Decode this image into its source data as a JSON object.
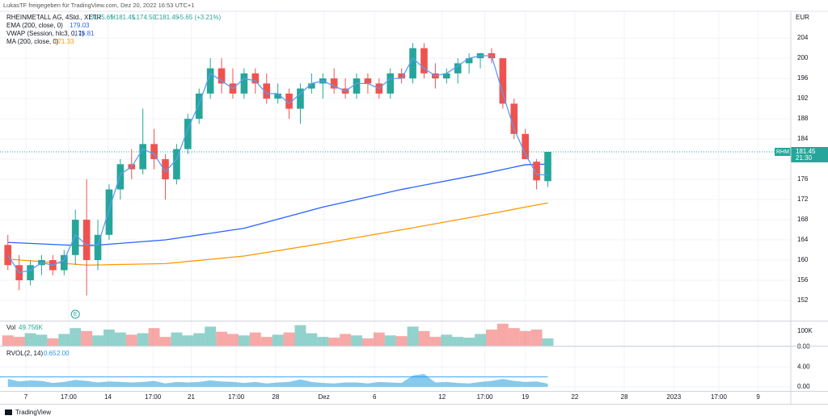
{
  "chart_data": {
    "type": "candlestick",
    "header": "LukasTF freigegeben für TradingView.com, Dez 20, 2022 16:53 UTC+1",
    "symbol": "RHEINMETALL AG, 4Std., XETR",
    "ohlc": [
      "O175.65",
      "H181.45",
      "L174.50",
      "C181.45",
      "+5.65 (+3.21%)"
    ],
    "currency": "EUR",
    "symbol_short": "RHM",
    "countdown": "21:30",
    "earnings_marker": "E",
    "brand": "TradingView",
    "xlim": [
      -0.7,
      69.6
    ],
    "xticks": [
      {
        "value": 1.6,
        "label": "7"
      },
      {
        "value": 5.4,
        "label": "17:00"
      },
      {
        "value": 8.9,
        "label": "14"
      },
      {
        "value": 12.9,
        "label": "17:00"
      },
      {
        "value": 16.3,
        "label": "21"
      },
      {
        "value": 20.3,
        "label": "17:00"
      },
      {
        "value": 23.8,
        "label": "28"
      },
      {
        "value": 28.1,
        "label": "Dez"
      },
      {
        "value": 32.6,
        "label": "6"
      },
      {
        "value": 38.6,
        "label": "12"
      },
      {
        "value": 42.4,
        "label": "17:00"
      },
      {
        "value": 46.0,
        "label": "19"
      },
      {
        "value": 50.4,
        "label": "22"
      },
      {
        "value": 54.8,
        "label": "28"
      },
      {
        "value": 59.2,
        "label": "2023"
      },
      {
        "value": 63.2,
        "label": "17:00"
      },
      {
        "value": 66.7,
        "label": "9"
      }
    ],
    "ylim": [
      148,
      209.3
    ],
    "yticks": [
      152,
      156,
      160,
      164,
      168,
      172,
      176,
      180,
      184,
      188,
      192,
      196,
      200,
      204
    ],
    "up_color": "#26a69a",
    "down_color": "#ef5350",
    "open": [
      163,
      159,
      156,
      159,
      160,
      158,
      161,
      168,
      160,
      165,
      174,
      179,
      178,
      183,
      180,
      176,
      182,
      188,
      193,
      198,
      195,
      193,
      197,
      195,
      192,
      193,
      190,
      194,
      195,
      196,
      194,
      193,
      196,
      195,
      193,
      197,
      196,
      202,
      197,
      196,
      197,
      199,
      200,
      201,
      200,
      191,
      185,
      179.5,
      175.65
    ],
    "high": [
      165,
      161,
      160,
      161,
      161,
      162,
      170,
      176,
      168,
      175,
      180,
      182,
      190,
      186,
      181,
      183,
      189,
      194,
      200,
      200,
      198,
      198,
      198,
      197,
      195,
      194,
      195,
      197,
      197,
      198,
      196,
      197,
      197,
      196,
      198,
      198,
      203,
      203,
      199,
      198,
      200,
      201,
      201,
      202,
      200,
      192,
      186,
      180,
      181.45
    ],
    "low": [
      158,
      154,
      155,
      157,
      157,
      157,
      159,
      153,
      158,
      164,
      172,
      176,
      177,
      178,
      172,
      175,
      181,
      187,
      192,
      193,
      192,
      192,
      193,
      191,
      191,
      188,
      187,
      193,
      192,
      193,
      192,
      192,
      193,
      192,
      192,
      195,
      195,
      196,
      194,
      195,
      195,
      197,
      198,
      199,
      190,
      184,
      180,
      174,
      174.5
    ],
    "close": [
      159,
      156,
      159,
      160,
      158,
      161,
      168,
      160,
      165,
      174,
      179,
      178,
      183,
      180,
      176,
      182,
      188,
      193,
      198,
      195,
      193,
      197,
      195,
      192,
      193,
      190,
      194,
      195,
      196,
      194,
      193,
      196,
      195,
      193,
      197,
      196,
      202,
      197,
      196,
      197,
      199,
      200,
      201,
      200,
      191,
      185,
      180,
      175.8,
      181.45
    ],
    "ema": {
      "name": "EMA (200, close, 0)",
      "color": "#2962ff",
      "x": [
        0,
        7,
        14,
        21,
        28,
        35,
        42,
        46,
        48
      ],
      "values": [
        163.5,
        162.8,
        164.0,
        166.3,
        170.5,
        174.0,
        177.0,
        178.9,
        179.03
      ]
    },
    "ma": {
      "name": "MA (200, close, 0)",
      "color": "#ff9800",
      "x": [
        0,
        7,
        14,
        21,
        28,
        35,
        42,
        46,
        48
      ],
      "values": [
        160.2,
        159.0,
        159.3,
        160.8,
        163.3,
        166.0,
        168.8,
        170.5,
        171.33
      ]
    },
    "vwap": {
      "name": "VWAP (Session, hlc3, 0, 1)",
      "color": "#5b9cf6",
      "values": [
        161,
        157.5,
        158,
        159.5,
        159,
        160,
        165,
        163,
        163,
        170,
        177,
        178.5,
        182,
        181,
        177.5,
        180,
        186,
        191,
        197,
        195.5,
        194,
        196,
        195.5,
        193,
        193,
        191,
        193,
        195,
        195.5,
        194.5,
        193.5,
        195,
        195,
        194,
        196,
        196,
        200,
        198,
        196.5,
        197,
        198.5,
        200,
        200.5,
        200.5,
        193,
        186,
        181,
        177,
        176.81
      ]
    },
    "volume": {
      "name": "Vol",
      "last_label": "49.756K",
      "ylim": [
        0,
        165000
      ],
      "yticks": [
        {
          "value": 100000,
          "label": "100K"
        }
      ],
      "values": [
        70000,
        60000,
        85000,
        75000,
        50000,
        80000,
        120000,
        100000,
        70000,
        110000,
        90000,
        75000,
        85000,
        120000,
        60000,
        90000,
        70000,
        85000,
        130000,
        95000,
        80000,
        70000,
        90000,
        60000,
        75000,
        90000,
        140000,
        85000,
        60000,
        55000,
        80000,
        70000,
        50000,
        90000,
        70000,
        65000,
        130000,
        100000,
        60000,
        75000,
        60000,
        55000,
        80000,
        110000,
        150000,
        120000,
        100000,
        110000,
        49756
      ]
    },
    "rvol": {
      "name": "RVOL",
      "params": "(2, 14)",
      "color": "#5db8e8",
      "threshold": {
        "value": 2,
        "label": "2.00"
      },
      "ylim": [
        -0.8,
        8.1
      ],
      "yticks": [
        {
          "value": 8,
          "label": "8.00"
        },
        {
          "value": 4,
          "label": "4.00"
        },
        {
          "value": 0,
          "label": "0.00"
        }
      ],
      "values": [
        1.6,
        1.1,
        1.3,
        1.2,
        0.8,
        1.0,
        1.4,
        1.2,
        0.9,
        1.1,
        1.0,
        0.9,
        1.0,
        1.2,
        0.7,
        1.0,
        0.9,
        1.0,
        1.3,
        1.1,
        1.0,
        0.8,
        1.0,
        0.7,
        0.9,
        1.0,
        1.5,
        1.0,
        0.8,
        0.7,
        0.9,
        0.9,
        0.7,
        1.0,
        0.9,
        0.8,
        2.3,
        2.6,
        0.9,
        1.0,
        0.8,
        0.7,
        1.0,
        1.2,
        1.6,
        1.2,
        1.0,
        1.1,
        0.65
      ]
    }
  }
}
